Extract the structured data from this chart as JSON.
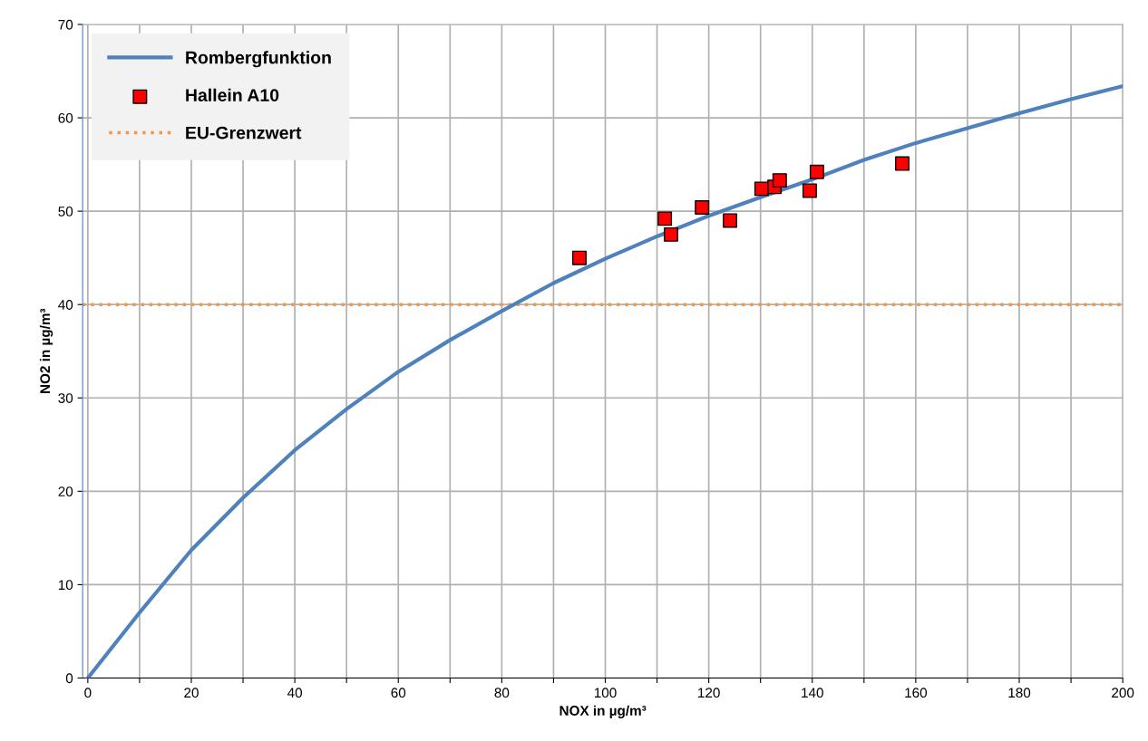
{
  "chart_data": {
    "type": "scatter",
    "xlabel": "NOX in µg/m³",
    "ylabel": "NO2 in µg/m³",
    "series": [
      {
        "name": "Rombergfunktion",
        "type": "line",
        "color": "#4f81bd",
        "marker": "none",
        "line_style": "solid",
        "x": [
          0,
          10,
          20,
          30,
          40,
          50,
          60,
          70,
          80,
          90,
          100,
          110,
          120,
          130,
          140,
          150,
          160,
          170,
          180,
          190,
          200
        ],
        "values": [
          0,
          7.0,
          13.7,
          19.3,
          24.4,
          28.8,
          32.8,
          36.2,
          39.3,
          42.3,
          44.9,
          47.3,
          49.5,
          51.5,
          53.4,
          55.5,
          57.3,
          58.9,
          60.5,
          62.0,
          63.4
        ]
      },
      {
        "name": "Hallein A10",
        "color": "#ff0000",
        "marker": "square",
        "x": [
          95.0,
          111.5,
          112.7,
          118.7,
          124.1,
          130.2,
          132.7,
          133.7,
          139.5,
          140.9,
          157.4
        ],
        "values": [
          45.0,
          49.2,
          47.5,
          50.4,
          49.0,
          52.4,
          52.6,
          53.3,
          52.2,
          54.2,
          55.1
        ]
      }
    ],
    "ref_lines": [
      {
        "axis": "y",
        "value": 40,
        "label": "EU-Grenzwert",
        "color": "#f79646",
        "line_style": "dotted"
      }
    ],
    "xlim": [
      -1,
      200
    ],
    "ylim": [
      0,
      70
    ],
    "xticks": [
      0,
      {
        "value": 10,
        "label": null
      },
      20,
      {
        "value": 30,
        "label": null
      },
      40,
      {
        "value": 50,
        "label": null
      },
      60,
      {
        "value": 70,
        "label": null
      },
      80,
      {
        "value": 90,
        "label": null
      },
      100,
      {
        "value": 110,
        "label": null
      },
      120,
      {
        "value": 130,
        "label": null
      },
      140,
      {
        "value": 150,
        "label": null
      },
      160,
      {
        "value": 170,
        "label": null
      },
      180,
      {
        "value": 190,
        "label": null
      },
      200
    ],
    "yticks": [
      0,
      10,
      20,
      30,
      40,
      50,
      60,
      70
    ],
    "grid": true,
    "legend": "top left"
  }
}
